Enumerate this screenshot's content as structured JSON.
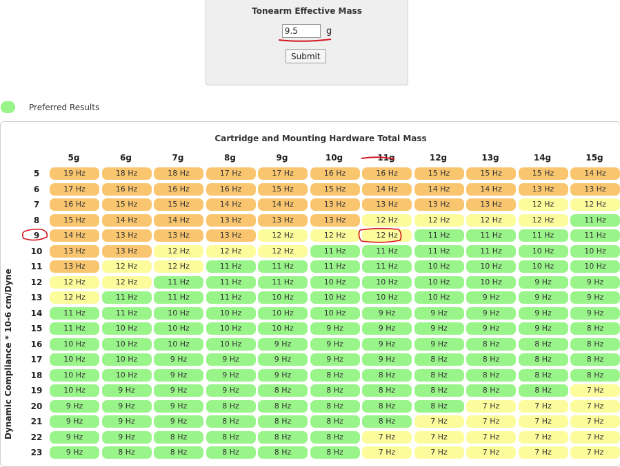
{
  "form": {
    "title": "Tonearm Effective Mass",
    "mass_value": "9.5",
    "unit": "g",
    "submit_label": "Submit"
  },
  "legend": {
    "label": "Preferred Results",
    "color": "#99f58a"
  },
  "table": {
    "title": "Cartridge and Mounting Hardware Total Mass",
    "ylabel": "Dynamic Compliance * 10-6 cm/Dyne",
    "columns": [
      "5g",
      "6g",
      "7g",
      "8g",
      "9g",
      "10g",
      "11g",
      "12g",
      "13g",
      "14g",
      "15g"
    ],
    "rows": [
      {
        "compliance": "5",
        "cells": [
          "19 Hz",
          "18 Hz",
          "18 Hz",
          "17 Hz",
          "17 Hz",
          "16 Hz",
          "16 Hz",
          "15 Hz",
          "15 Hz",
          "15 Hz",
          "14 Hz"
        ],
        "status": "ooooooooooo"
      },
      {
        "compliance": "6",
        "cells": [
          "17 Hz",
          "16 Hz",
          "16 Hz",
          "16 Hz",
          "15 Hz",
          "15 Hz",
          "14 Hz",
          "14 Hz",
          "14 Hz",
          "13 Hz",
          "13 Hz"
        ],
        "status": "ooooooooooo"
      },
      {
        "compliance": "7",
        "cells": [
          "16 Hz",
          "15 Hz",
          "15 Hz",
          "14 Hz",
          "14 Hz",
          "13 Hz",
          "13 Hz",
          "13 Hz",
          "13 Hz",
          "12 Hz",
          "12 Hz"
        ],
        "status": "oooooooooyy"
      },
      {
        "compliance": "8",
        "cells": [
          "15 Hz",
          "14 Hz",
          "14 Hz",
          "13 Hz",
          "13 Hz",
          "13 Hz",
          "12 Hz",
          "12 Hz",
          "12 Hz",
          "12 Hz",
          "11 Hz"
        ],
        "status": "ooooooyyyyg"
      },
      {
        "compliance": "9",
        "cells": [
          "14 Hz",
          "13 Hz",
          "13 Hz",
          "13 Hz",
          "12 Hz",
          "12 Hz",
          "12 Hz",
          "11 Hz",
          "11 Hz",
          "11 Hz",
          "11 Hz"
        ],
        "status": "ooooyyygggg"
      },
      {
        "compliance": "10",
        "cells": [
          "13 Hz",
          "13 Hz",
          "12 Hz",
          "12 Hz",
          "12 Hz",
          "11 Hz",
          "11 Hz",
          "11 Hz",
          "11 Hz",
          "10 Hz",
          "10 Hz"
        ],
        "status": "ooyyygggggg"
      },
      {
        "compliance": "11",
        "cells": [
          "13 Hz",
          "12 Hz",
          "12 Hz",
          "11 Hz",
          "11 Hz",
          "11 Hz",
          "11 Hz",
          "10 Hz",
          "10 Hz",
          "10 Hz",
          "10 Hz"
        ],
        "status": "oyygggggggg"
      },
      {
        "compliance": "12",
        "cells": [
          "12 Hz",
          "12 Hz",
          "11 Hz",
          "11 Hz",
          "11 Hz",
          "10 Hz",
          "10 Hz",
          "10 Hz",
          "10 Hz",
          "9 Hz",
          "9 Hz"
        ],
        "status": "yyggggggggg"
      },
      {
        "compliance": "13",
        "cells": [
          "12 Hz",
          "11 Hz",
          "11 Hz",
          "11 Hz",
          "10 Hz",
          "10 Hz",
          "10 Hz",
          "10 Hz",
          "9 Hz",
          "9 Hz",
          "9 Hz"
        ],
        "status": "ygggggggggg"
      },
      {
        "compliance": "14",
        "cells": [
          "11 Hz",
          "11 Hz",
          "10 Hz",
          "10 Hz",
          "10 Hz",
          "10 Hz",
          "9 Hz",
          "9 Hz",
          "9 Hz",
          "9 Hz",
          "9 Hz"
        ],
        "status": "ggggggggggg"
      },
      {
        "compliance": "15",
        "cells": [
          "11 Hz",
          "10 Hz",
          "10 Hz",
          "10 Hz",
          "10 Hz",
          "9 Hz",
          "9 Hz",
          "9 Hz",
          "9 Hz",
          "9 Hz",
          "8 Hz"
        ],
        "status": "ggggggggggg"
      },
      {
        "compliance": "16",
        "cells": [
          "10 Hz",
          "10 Hz",
          "10 Hz",
          "10 Hz",
          "9 Hz",
          "9 Hz",
          "9 Hz",
          "9 Hz",
          "8 Hz",
          "8 Hz",
          "8 Hz"
        ],
        "status": "ggggggggggg"
      },
      {
        "compliance": "17",
        "cells": [
          "10 Hz",
          "10 Hz",
          "9 Hz",
          "9 Hz",
          "9 Hz",
          "9 Hz",
          "9 Hz",
          "8 Hz",
          "8 Hz",
          "8 Hz",
          "8 Hz"
        ],
        "status": "ggggggggggg"
      },
      {
        "compliance": "18",
        "cells": [
          "10 Hz",
          "10 Hz",
          "9 Hz",
          "9 Hz",
          "9 Hz",
          "8 Hz",
          "8 Hz",
          "8 Hz",
          "8 Hz",
          "8 Hz",
          "8 Hz"
        ],
        "status": "ggggggggggg"
      },
      {
        "compliance": "19",
        "cells": [
          "10 Hz",
          "9 Hz",
          "9 Hz",
          "9 Hz",
          "8 Hz",
          "8 Hz",
          "8 Hz",
          "8 Hz",
          "8 Hz",
          "8 Hz",
          "7 Hz"
        ],
        "status": "ggggggggggy"
      },
      {
        "compliance": "20",
        "cells": [
          "9 Hz",
          "9 Hz",
          "9 Hz",
          "8 Hz",
          "8 Hz",
          "8 Hz",
          "8 Hz",
          "8 Hz",
          "7 Hz",
          "7 Hz",
          "7 Hz"
        ],
        "status": "ggggggggyyy"
      },
      {
        "compliance": "21",
        "cells": [
          "9 Hz",
          "9 Hz",
          "9 Hz",
          "8 Hz",
          "8 Hz",
          "8 Hz",
          "8 Hz",
          "7 Hz",
          "7 Hz",
          "7 Hz",
          "7 Hz"
        ],
        "status": "gggggggyyyy"
      },
      {
        "compliance": "22",
        "cells": [
          "9 Hz",
          "9 Hz",
          "8 Hz",
          "8 Hz",
          "8 Hz",
          "8 Hz",
          "7 Hz",
          "7 Hz",
          "7 Hz",
          "7 Hz",
          "7 Hz"
        ],
        "status": "ggggggyyyyy"
      },
      {
        "compliance": "23",
        "cells": [
          "9 Hz",
          "8 Hz",
          "8 Hz",
          "8 Hz",
          "8 Hz",
          "8 Hz",
          "7 Hz",
          "7 Hz",
          "7 Hz",
          "7 Hz",
          "7 Hz"
        ],
        "status": "ggggggyyyyy"
      }
    ],
    "status_colors": {
      "o": "#f9c66f",
      "y": "#fcfc9c",
      "g": "#99f58a"
    }
  },
  "annotation_color": "#d4141e"
}
